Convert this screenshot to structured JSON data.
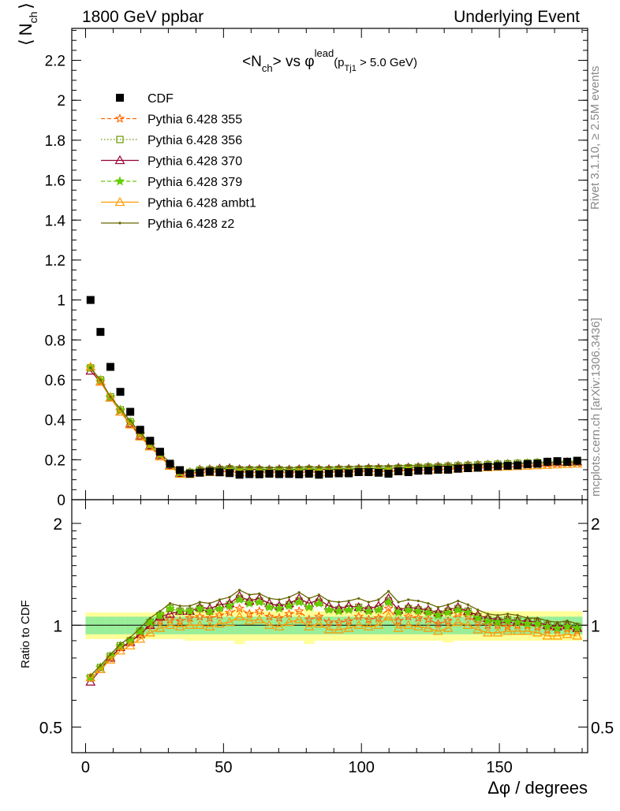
{
  "header": {
    "left": "1800 GeV ppbar",
    "right": "Underlying Event"
  },
  "side_labels": {
    "rivet": "Rivet 3.1.10, ≥ 2.5M events",
    "mcplots": "mcplots.cern.ch [arXiv:1306.3436]"
  },
  "chart_data": [
    {
      "type": "scatter",
      "title": "<N_ch> vs φ^lead (p_Tj1 > 5.0 GeV)",
      "title_parts": {
        "a": "<N",
        "a_sub": "ch",
        "b": "> vs ",
        "phi": "φ",
        "phi_sup": "lead",
        "c": "(p",
        "c_sub": "Tj1",
        "d": " > 5.0 GeV)"
      },
      "ylabel": "⟨ N_ch ⟩",
      "ylabel_parts": {
        "open": "⟨",
        "n": "N",
        "sub": "ch",
        "close": "⟩"
      },
      "xlim": [
        -5,
        182
      ],
      "ylim": [
        0,
        2.36
      ],
      "yticks": [
        "0",
        "0.2",
        "0.4",
        "0.6",
        "0.8",
        "1",
        "1.2",
        "1.4",
        "1.6",
        "1.8",
        "2",
        "2.2"
      ],
      "legend_position": "top-left",
      "x": [
        1.8,
        5.4,
        9,
        12.6,
        16.2,
        19.8,
        23.4,
        27,
        30.6,
        34.2,
        37.8,
        41.4,
        45,
        48.6,
        52.2,
        55.8,
        59.4,
        63,
        66.6,
        70.2,
        73.8,
        77.4,
        81,
        84.6,
        88.2,
        91.8,
        95.4,
        99,
        102.6,
        106.2,
        109.8,
        113.4,
        117,
        120.6,
        124.2,
        127.8,
        131.4,
        135,
        138.6,
        142.2,
        145.8,
        149.4,
        153,
        156.6,
        160.2,
        163.8,
        167.4,
        171,
        174.6,
        178.2
      ],
      "series": [
        {
          "name": "CDF",
          "color": "#000000",
          "marker": "square",
          "line": "none",
          "values": [
            1.0,
            0.84,
            0.665,
            0.54,
            0.44,
            0.35,
            0.295,
            0.24,
            0.18,
            0.148,
            0.13,
            0.135,
            0.14,
            0.137,
            0.133,
            0.125,
            0.128,
            0.127,
            0.13,
            0.128,
            0.129,
            0.127,
            0.13,
            0.125,
            0.13,
            0.132,
            0.132,
            0.138,
            0.138,
            0.135,
            0.13,
            0.142,
            0.138,
            0.145,
            0.146,
            0.15,
            0.15,
            0.155,
            0.158,
            0.16,
            0.165,
            0.168,
            0.17,
            0.172,
            0.178,
            0.18,
            0.19,
            0.193,
            0.19,
            0.195
          ]
        },
        {
          "name": "Pythia 6.428 355",
          "color": "#ff6600",
          "marker": "star-open",
          "line": "dashed",
          "values": [
            0.66,
            0.59,
            0.51,
            0.445,
            0.385,
            0.325,
            0.27,
            0.22,
            0.17,
            0.13,
            0.13,
            0.14,
            0.14,
            0.14,
            0.145,
            0.14,
            0.14,
            0.14,
            0.138,
            0.14,
            0.138,
            0.14,
            0.14,
            0.138,
            0.14,
            0.142,
            0.142,
            0.142,
            0.145,
            0.145,
            0.145,
            0.148,
            0.15,
            0.152,
            0.154,
            0.156,
            0.158,
            0.16,
            0.162,
            0.164,
            0.166,
            0.168,
            0.17,
            0.172,
            0.174,
            0.176,
            0.178,
            0.18,
            0.182,
            0.184
          ]
        },
        {
          "name": "Pythia 6.428 356",
          "color": "#669900",
          "marker": "square-open",
          "line": "dotted",
          "values": [
            0.66,
            0.6,
            0.515,
            0.45,
            0.39,
            0.33,
            0.275,
            0.225,
            0.175,
            0.135,
            0.137,
            0.148,
            0.15,
            0.152,
            0.155,
            0.15,
            0.15,
            0.15,
            0.148,
            0.15,
            0.148,
            0.15,
            0.152,
            0.15,
            0.15,
            0.152,
            0.152,
            0.153,
            0.155,
            0.155,
            0.155,
            0.158,
            0.16,
            0.162,
            0.164,
            0.165,
            0.168,
            0.17,
            0.172,
            0.174,
            0.176,
            0.178,
            0.18,
            0.182,
            0.184,
            0.186,
            0.188,
            0.19,
            0.19,
            0.192
          ]
        },
        {
          "name": "Pythia 6.428 370",
          "color": "#990033",
          "marker": "triangle-open",
          "line": "solid",
          "values": [
            0.645,
            0.59,
            0.51,
            0.44,
            0.38,
            0.32,
            0.27,
            0.222,
            0.172,
            0.133,
            0.137,
            0.15,
            0.152,
            0.155,
            0.157,
            0.152,
            0.152,
            0.152,
            0.15,
            0.152,
            0.15,
            0.152,
            0.154,
            0.152,
            0.152,
            0.154,
            0.154,
            0.155,
            0.157,
            0.157,
            0.157,
            0.16,
            0.161,
            0.163,
            0.164,
            0.166,
            0.168,
            0.17,
            0.172,
            0.174,
            0.175,
            0.177,
            0.179,
            0.18,
            0.182,
            0.184,
            0.186,
            0.187,
            0.188,
            0.19
          ]
        },
        {
          "name": "Pythia 6.428 379",
          "color": "#66cc00",
          "marker": "star",
          "line": "dashed",
          "values": [
            0.66,
            0.6,
            0.515,
            0.45,
            0.39,
            0.33,
            0.275,
            0.225,
            0.175,
            0.135,
            0.137,
            0.148,
            0.15,
            0.15,
            0.152,
            0.148,
            0.148,
            0.148,
            0.146,
            0.148,
            0.146,
            0.148,
            0.15,
            0.148,
            0.148,
            0.15,
            0.15,
            0.151,
            0.153,
            0.153,
            0.153,
            0.156,
            0.158,
            0.16,
            0.162,
            0.163,
            0.166,
            0.168,
            0.17,
            0.172,
            0.174,
            0.176,
            0.178,
            0.18,
            0.182,
            0.184,
            0.186,
            0.188,
            0.188,
            0.19
          ]
        },
        {
          "name": "Pythia 6.428 ambt1",
          "color": "#ff9900",
          "marker": "triangle-open",
          "line": "solid",
          "values": [
            0.665,
            0.59,
            0.51,
            0.44,
            0.375,
            0.315,
            0.265,
            0.215,
            0.168,
            0.128,
            0.127,
            0.135,
            0.137,
            0.137,
            0.14,
            0.136,
            0.136,
            0.136,
            0.135,
            0.136,
            0.135,
            0.136,
            0.138,
            0.136,
            0.136,
            0.138,
            0.138,
            0.139,
            0.14,
            0.14,
            0.14,
            0.143,
            0.145,
            0.147,
            0.149,
            0.151,
            0.153,
            0.155,
            0.157,
            0.159,
            0.161,
            0.163,
            0.165,
            0.167,
            0.169,
            0.171,
            0.173,
            0.175,
            0.177,
            0.179
          ]
        },
        {
          "name": "Pythia 6.428 z2",
          "color": "#666600",
          "marker": "dot",
          "line": "solid",
          "values": [
            0.66,
            0.6,
            0.515,
            0.455,
            0.395,
            0.335,
            0.285,
            0.235,
            0.185,
            0.14,
            0.142,
            0.155,
            0.16,
            0.162,
            0.165,
            0.162,
            0.162,
            0.162,
            0.16,
            0.162,
            0.16,
            0.162,
            0.165,
            0.162,
            0.162,
            0.165,
            0.165,
            0.166,
            0.168,
            0.168,
            0.168,
            0.17,
            0.171,
            0.172,
            0.173,
            0.174,
            0.175,
            0.176,
            0.177,
            0.178,
            0.179,
            0.18,
            0.181,
            0.182,
            0.183,
            0.184,
            0.186,
            0.187,
            0.188,
            0.19
          ]
        }
      ]
    },
    {
      "type": "line",
      "ylabel": "Ratio to CDF",
      "xlabel": "Δφ / degrees",
      "xlim": [
        -5,
        182
      ],
      "ylim": [
        0.42,
        2.35
      ],
      "yscale": "log",
      "yticks": [
        "0.5",
        "1",
        "2"
      ],
      "xticks": [
        "0",
        "50",
        "100",
        "150"
      ],
      "reference_line": 1,
      "band_inner_color": "#99ee99",
      "band_outer_color": "#ffff99",
      "band_inner_halfwidth": [
        0.06,
        0.06,
        0.06,
        0.06,
        0.06,
        0.06,
        0.06,
        0.06,
        0.06,
        0.06,
        0.06,
        0.06,
        0.06,
        0.06,
        0.06,
        0.06,
        0.06,
        0.06,
        0.06,
        0.06,
        0.06,
        0.06,
        0.06,
        0.06,
        0.06,
        0.06,
        0.06,
        0.06,
        0.06,
        0.06,
        0.06,
        0.06,
        0.06,
        0.06,
        0.06,
        0.06,
        0.06,
        0.06,
        0.06,
        0.06,
        0.06,
        0.06,
        0.06,
        0.06,
        0.06,
        0.06,
        0.06,
        0.06,
        0.06,
        0.06
      ],
      "band_outer_halfwidth": [
        0.09,
        0.09,
        0.09,
        0.09,
        0.09,
        0.09,
        0.09,
        0.09,
        0.09,
        0.09,
        0.1,
        0.1,
        0.1,
        0.1,
        0.1,
        0.12,
        0.1,
        0.1,
        0.1,
        0.1,
        0.1,
        0.1,
        0.12,
        0.1,
        0.1,
        0.1,
        0.1,
        0.1,
        0.1,
        0.1,
        0.1,
        0.1,
        0.1,
        0.1,
        0.1,
        0.1,
        0.11,
        0.1,
        0.1,
        0.1,
        0.1,
        0.1,
        0.1,
        0.1,
        0.1,
        0.1,
        0.1,
        0.1,
        0.1,
        0.1
      ],
      "x": [
        1.8,
        5.4,
        9,
        12.6,
        16.2,
        19.8,
        23.4,
        27,
        30.6,
        34.2,
        37.8,
        41.4,
        45,
        48.6,
        52.2,
        55.8,
        59.4,
        63,
        66.6,
        70.2,
        73.8,
        77.4,
        81,
        84.6,
        88.2,
        91.8,
        95.4,
        99,
        102.6,
        106.2,
        109.8,
        113.4,
        117,
        120.6,
        124.2,
        127.8,
        131.4,
        135,
        138.6,
        142.2,
        145.8,
        149.4,
        153,
        156.6,
        160.2,
        163.8,
        167.4,
        171,
        174.6,
        178.2
      ],
      "series": [
        {
          "name": "Pythia 6.428 355",
          "color": "#ff6600",
          "marker": "star-open",
          "line": "dashed",
          "values": [
            0.7,
            0.75,
            0.8,
            0.86,
            0.89,
            0.95,
            1.0,
            1.03,
            1.04,
            1.03,
            1.05,
            1.06,
            1.05,
            1.07,
            1.09,
            1.12,
            1.08,
            1.1,
            1.06,
            1.05,
            1.08,
            1.1,
            1.04,
            1.06,
            1.02,
            1.02,
            1.03,
            1.06,
            1.04,
            1.05,
            1.12,
            1.03,
            1.06,
            1.05,
            1.04,
            1.01,
            1.03,
            1.08,
            1.06,
            1.02,
            1.0,
            1.0,
            0.99,
            1.0,
            1.0,
            0.99,
            0.97,
            0.97,
            0.98,
            0.96
          ]
        },
        {
          "name": "Pythia 6.428 356",
          "color": "#669900",
          "marker": "square-open",
          "line": "dotted",
          "values": [
            0.7,
            0.75,
            0.81,
            0.87,
            0.9,
            0.96,
            1.02,
            1.07,
            1.12,
            1.1,
            1.1,
            1.12,
            1.1,
            1.13,
            1.15,
            1.2,
            1.17,
            1.18,
            1.14,
            1.13,
            1.15,
            1.18,
            1.14,
            1.17,
            1.12,
            1.11,
            1.12,
            1.13,
            1.11,
            1.12,
            1.18,
            1.1,
            1.12,
            1.11,
            1.1,
            1.08,
            1.1,
            1.12,
            1.1,
            1.06,
            1.04,
            1.03,
            1.04,
            1.03,
            1.02,
            1.02,
            1.0,
            0.99,
            1.0,
            0.99
          ]
        },
        {
          "name": "Pythia 6.428 370",
          "color": "#990033",
          "marker": "triangle-open",
          "line": "solid",
          "values": [
            0.68,
            0.74,
            0.8,
            0.86,
            0.89,
            0.94,
            1.0,
            1.06,
            1.08,
            1.1,
            1.1,
            1.13,
            1.12,
            1.15,
            1.16,
            1.22,
            1.18,
            1.2,
            1.16,
            1.14,
            1.16,
            1.2,
            1.16,
            1.19,
            1.14,
            1.12,
            1.14,
            1.13,
            1.12,
            1.14,
            1.2,
            1.11,
            1.13,
            1.12,
            1.11,
            1.09,
            1.11,
            1.13,
            1.1,
            1.07,
            1.05,
            1.04,
            1.04,
            1.03,
            1.03,
            1.02,
            1.0,
            0.99,
            1.0,
            0.98
          ]
        },
        {
          "name": "Pythia 6.428 379",
          "color": "#66cc00",
          "marker": "star",
          "line": "dashed",
          "values": [
            0.7,
            0.75,
            0.81,
            0.87,
            0.9,
            0.96,
            1.02,
            1.07,
            1.12,
            1.1,
            1.1,
            1.12,
            1.1,
            1.12,
            1.14,
            1.19,
            1.16,
            1.17,
            1.13,
            1.12,
            1.14,
            1.17,
            1.13,
            1.16,
            1.11,
            1.1,
            1.11,
            1.12,
            1.1,
            1.11,
            1.17,
            1.09,
            1.11,
            1.1,
            1.09,
            1.07,
            1.09,
            1.11,
            1.09,
            1.05,
            1.03,
            1.02,
            1.03,
            1.02,
            1.01,
            1.01,
            0.99,
            0.98,
            0.99,
            0.98
          ]
        },
        {
          "name": "Pythia 6.428 ambt1",
          "color": "#ff9900",
          "marker": "triangle-open",
          "line": "solid",
          "values": [
            0.7,
            0.74,
            0.79,
            0.84,
            0.87,
            0.91,
            0.95,
            0.98,
            1.0,
            0.99,
            1.0,
            1.0,
            0.99,
            1.01,
            1.02,
            1.06,
            1.03,
            1.04,
            1.0,
            0.99,
            1.02,
            1.04,
            0.99,
            1.01,
            0.97,
            0.97,
            0.98,
            1.0,
            0.99,
            1.0,
            1.06,
            0.98,
            1.0,
            0.99,
            0.98,
            0.96,
            0.98,
            1.02,
            1.0,
            0.97,
            0.95,
            0.95,
            0.96,
            0.96,
            0.96,
            0.95,
            0.93,
            0.93,
            0.94,
            0.93
          ]
        },
        {
          "name": "Pythia 6.428 z2",
          "color": "#666600",
          "marker": "dot",
          "line": "solid",
          "values": [
            0.71,
            0.76,
            0.82,
            0.88,
            0.92,
            0.98,
            1.05,
            1.1,
            1.16,
            1.14,
            1.14,
            1.17,
            1.16,
            1.19,
            1.21,
            1.27,
            1.23,
            1.24,
            1.2,
            1.19,
            1.21,
            1.25,
            1.2,
            1.23,
            1.18,
            1.17,
            1.18,
            1.2,
            1.17,
            1.19,
            1.26,
            1.17,
            1.19,
            1.18,
            1.16,
            1.13,
            1.15,
            1.18,
            1.15,
            1.11,
            1.08,
            1.07,
            1.08,
            1.07,
            1.05,
            1.05,
            1.03,
            1.02,
            1.03,
            1.01
          ]
        }
      ]
    }
  ]
}
